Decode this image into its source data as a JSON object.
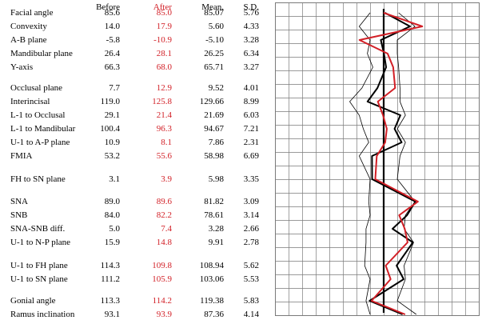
{
  "table": {
    "headers": {
      "before": "Before",
      "after": "After",
      "mean": "Mean.",
      "sd": "S.D."
    },
    "rows": [
      {
        "name": "Facial angle",
        "before": "85.6",
        "after": "85.0",
        "mean": "85.07",
        "sd": "5.76"
      },
      {
        "name": "Convexity",
        "before": "14.0",
        "after": "17.9",
        "mean": "5.60",
        "sd": "4.33"
      },
      {
        "name": "A-B plane",
        "before": "-5.8",
        "after": "-10.9",
        "mean": "-5.10",
        "sd": "3.28"
      },
      {
        "name": "Mandibular plane",
        "before": "26.4",
        "after": "28.1",
        "mean": "26.25",
        "sd": "6.34"
      },
      {
        "name": "Y-axis",
        "before": "66.3",
        "after": "68.0",
        "mean": "65.71",
        "sd": "3.27"
      },
      {
        "name": "Occlusal plane",
        "before": "7.7",
        "after": "12.9",
        "mean": "9.52",
        "sd": "4.01"
      },
      {
        "name": "Interincisal",
        "before": "119.0",
        "after": "125.8",
        "mean": "129.66",
        "sd": "8.99"
      },
      {
        "name": "L-1 to Occlusal",
        "before": "29.1",
        "after": "21.4",
        "mean": "21.69",
        "sd": "6.03"
      },
      {
        "name": "L-1 to Mandibular",
        "before": "100.4",
        "after": "96.3",
        "mean": "94.67",
        "sd": "7.21"
      },
      {
        "name": "U-1 to A-P plane",
        "before": "10.9",
        "after": "8.1",
        "mean": "7.86",
        "sd": "2.31"
      },
      {
        "name": "FMIA",
        "before": "53.2",
        "after": "55.6",
        "mean": "58.98",
        "sd": "6.69"
      },
      {
        "name": "FH to SN plane",
        "before": "3.1",
        "after": "3.9",
        "mean": "5.98",
        "sd": "3.35"
      },
      {
        "name": "SNA",
        "before": "89.0",
        "after": "89.6",
        "mean": "81.82",
        "sd": "3.09"
      },
      {
        "name": "SNB",
        "before": "84.0",
        "after": "82.2",
        "mean": "78.61",
        "sd": "3.14"
      },
      {
        "name": "SNA-SNB diff.",
        "before": "5.0",
        "after": "7.4",
        "mean": "3.28",
        "sd": "2.66"
      },
      {
        "name": "U-1 to N-P plane",
        "before": "15.9",
        "after": "14.8",
        "mean": "9.91",
        "sd": "2.78"
      },
      {
        "name": "U-1 to FH plane",
        "before": "114.3",
        "after": "109.8",
        "mean": "108.94",
        "sd": "5.62"
      },
      {
        "name": "U-1 to SN plane",
        "before": "111.2",
        "after": "105.9",
        "mean": "103.06",
        "sd": "5.53"
      },
      {
        "name": "Gonial angle",
        "before": "113.3",
        "after": "114.2",
        "mean": "119.38",
        "sd": "5.83"
      },
      {
        "name": "Ramus inclination",
        "before": "93.1",
        "after": "93.9",
        "mean": "87.36",
        "sd": "4.14"
      }
    ]
  },
  "colors": {
    "after": "#d21f26",
    "before": "#000000",
    "grid": "#7a7a7a"
  },
  "chart_data": {
    "type": "line",
    "description_of_axis": "each row plotted as standard deviations from the mean; center line = mean",
    "series": [
      {
        "name": "Before",
        "color": "#000000",
        "z": [
          0.09,
          1.94,
          -0.21,
          0.02,
          0.18,
          -0.46,
          -1.19,
          1.23,
          0.8,
          1.32,
          -0.86,
          -0.85,
          2.33,
          1.72,
          0.65,
          2.15,
          0.95,
          1.47,
          -1.04,
          1.39
        ]
      },
      {
        "name": "After",
        "color": "#d21f26",
        "z": [
          -0.01,
          2.84,
          -1.78,
          0.29,
          0.7,
          0.84,
          -0.43,
          -0.05,
          0.23,
          0.11,
          -0.51,
          -0.62,
          2.52,
          1.14,
          1.55,
          1.76,
          0.15,
          0.51,
          -0.89,
          1.58
        ]
      },
      {
        "name": "Range",
        "color": "#000000",
        "left": [
          -1.0,
          -1.8,
          -1.0,
          -1.2,
          -0.8,
          -1.6,
          -2.5,
          -1.8,
          -1.5,
          -1.1,
          -1.8,
          -1.0,
          -1.1,
          -1.0,
          -1.3,
          -1.3,
          -1.4,
          -1.0,
          -1.3,
          -1.0
        ],
        "right": [
          1.1,
          2.3,
          1.0,
          1.0,
          1.1,
          1.2,
          1.2,
          1.6,
          1.0,
          1.6,
          1.2,
          1.0,
          2.3,
          1.6,
          1.5,
          2.2,
          1.5,
          1.6,
          1.0,
          2.4
        ]
      }
    ],
    "xlim": [
      -4,
      4
    ],
    "grid": true
  }
}
